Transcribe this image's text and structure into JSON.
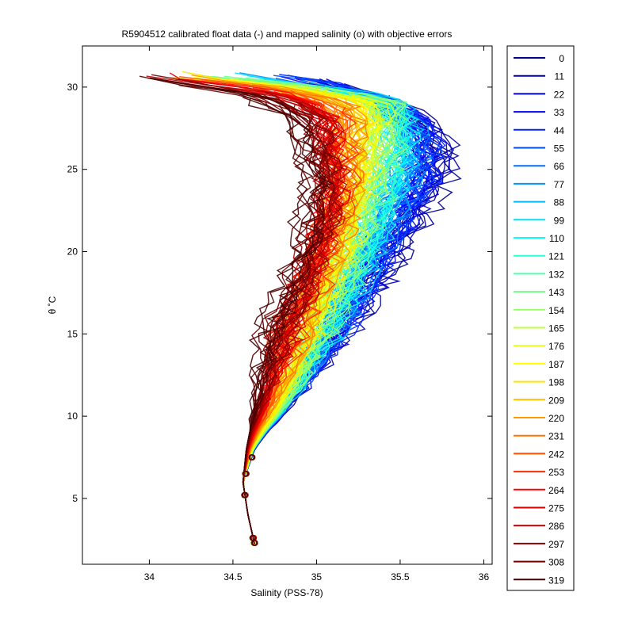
{
  "chart_data": {
    "type": "line",
    "title": "R5904512 calibrated float data (-) and mapped salinity (o) with objective errors",
    "xlabel": "Salinity (PSS-78)",
    "ylabel": "θ ˚C",
    "xlim": [
      33.6,
      36.05
    ],
    "ylim": [
      1.0,
      32.5
    ],
    "xticks": [
      "34",
      "34.5",
      "35",
      "35.5",
      "36"
    ],
    "yticks": [
      "5",
      "10",
      "15",
      "20",
      "25",
      "30"
    ],
    "grid": false,
    "legend_position": "right",
    "mapped_salinity_markers": "o",
    "series": [
      {
        "name": "0",
        "color": "#00008f"
      },
      {
        "name": "11",
        "color": "#0000b3"
      },
      {
        "name": "22",
        "color": "#0000d9"
      },
      {
        "name": "33",
        "color": "#0000ff"
      },
      {
        "name": "44",
        "color": "#0024ff"
      },
      {
        "name": "55",
        "color": "#004aff"
      },
      {
        "name": "66",
        "color": "#006fff"
      },
      {
        "name": "77",
        "color": "#0094ff"
      },
      {
        "name": "88",
        "color": "#00b9ff"
      },
      {
        "name": "99",
        "color": "#00dfff"
      },
      {
        "name": "110",
        "color": "#05ffff"
      },
      {
        "name": "121",
        "color": "#2bffd4"
      },
      {
        "name": "132",
        "color": "#50ffaf"
      },
      {
        "name": "143",
        "color": "#75ff8a"
      },
      {
        "name": "154",
        "color": "#9aff65"
      },
      {
        "name": "165",
        "color": "#bfff40"
      },
      {
        "name": "176",
        "color": "#e5ff1a"
      },
      {
        "name": "187",
        "color": "#ffff00"
      },
      {
        "name": "198",
        "color": "#ffe500"
      },
      {
        "name": "209",
        "color": "#ffc000"
      },
      {
        "name": "220",
        "color": "#ff9a00"
      },
      {
        "name": "231",
        "color": "#ff7500"
      },
      {
        "name": "242",
        "color": "#ff5000"
      },
      {
        "name": "253",
        "color": "#ff2b00"
      },
      {
        "name": "264",
        "color": "#ff0500"
      },
      {
        "name": "275",
        "color": "#df0000"
      },
      {
        "name": "286",
        "color": "#b90000"
      },
      {
        "name": "297",
        "color": "#940000"
      },
      {
        "name": "308",
        "color": "#6f0000"
      },
      {
        "name": "319",
        "color": "#4a0000"
      }
    ]
  }
}
